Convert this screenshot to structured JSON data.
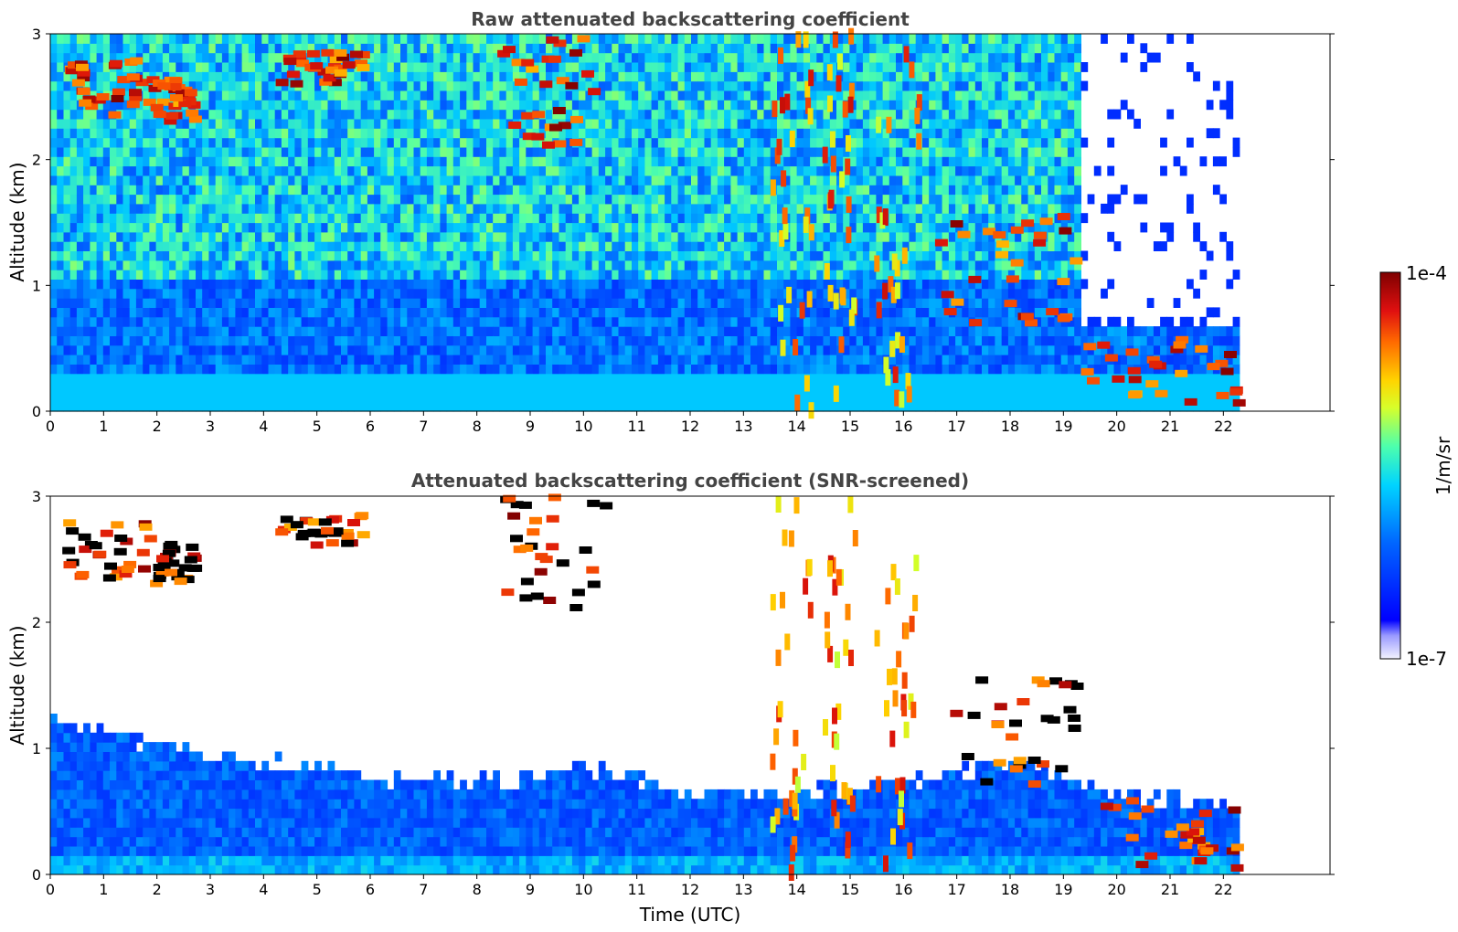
{
  "chart_data": [
    {
      "type": "heatmap",
      "title": "Raw attenuated backscattering coefficient",
      "xlabel": "",
      "ylabel": "Altitude (km)",
      "xlim": [
        0,
        24
      ],
      "ylim": [
        0,
        3
      ],
      "x_ticks": [
        "0",
        "1",
        "2",
        "3",
        "4",
        "5",
        "6",
        "7",
        "8",
        "9",
        "10",
        "11",
        "12",
        "13",
        "14",
        "15",
        "16",
        "17",
        "18",
        "19",
        "20",
        "21",
        "22"
      ],
      "y_ticks": [
        "0",
        "1",
        "2",
        "3"
      ],
      "data_extent_time": [
        0,
        22.3
      ],
      "features": [
        {
          "kind": "cloud",
          "t0": 0.3,
          "t1": 1.9,
          "alt0": 2.35,
          "alt1": 2.8
        },
        {
          "kind": "cloud",
          "t0": 1.9,
          "t1": 2.9,
          "alt0": 2.3,
          "alt1": 2.65
        },
        {
          "kind": "cloud",
          "t0": 4.3,
          "t1": 5.9,
          "alt0": 2.6,
          "alt1": 2.85
        },
        {
          "kind": "cloud",
          "t0": 8.5,
          "t1": 10.5,
          "alt0": 2.1,
          "alt1": 3.0
        },
        {
          "kind": "virga",
          "t0": 13.5,
          "t1": 14.3,
          "alt0": 0.0,
          "alt1": 3.0
        },
        {
          "kind": "virga",
          "t0": 14.5,
          "t1": 15.1,
          "alt0": 0.0,
          "alt1": 3.0
        },
        {
          "kind": "virga",
          "t0": 15.5,
          "t1": 16.3,
          "alt0": 0.0,
          "alt1": 3.0
        },
        {
          "kind": "cloud",
          "t0": 16.6,
          "t1": 19.3,
          "alt0": 0.7,
          "alt1": 1.55
        },
        {
          "kind": "low_cloud",
          "t0": 19.3,
          "t1": 22.3,
          "alt0": 0.05,
          "alt1": 0.6
        }
      ]
    },
    {
      "type": "heatmap",
      "title": "Attenuated backscattering coefficient (SNR-screened)",
      "xlabel": "Time (UTC)",
      "ylabel": "Altitude (km)",
      "xlim": [
        0,
        24
      ],
      "ylim": [
        0,
        3
      ],
      "x_ticks": [
        "0",
        "1",
        "2",
        "3",
        "4",
        "5",
        "6",
        "7",
        "8",
        "9",
        "10",
        "11",
        "12",
        "13",
        "14",
        "15",
        "16",
        "17",
        "18",
        "19",
        "20",
        "21",
        "22"
      ],
      "y_ticks": [
        "0",
        "1",
        "2",
        "3"
      ],
      "data_extent_time": [
        0,
        22.3
      ],
      "boundary_layer_top_km": [
        {
          "t": 0,
          "alt": 1.2
        },
        {
          "t": 2,
          "alt": 1.0
        },
        {
          "t": 4,
          "alt": 0.85
        },
        {
          "t": 6,
          "alt": 0.75
        },
        {
          "t": 8,
          "alt": 0.7
        },
        {
          "t": 10,
          "alt": 0.8
        },
        {
          "t": 12,
          "alt": 0.6
        },
        {
          "t": 14,
          "alt": 0.6
        },
        {
          "t": 16,
          "alt": 0.7
        },
        {
          "t": 18,
          "alt": 0.9
        },
        {
          "t": 20,
          "alt": 0.6
        },
        {
          "t": 22.3,
          "alt": 0.5
        }
      ]
    }
  ],
  "colorbar": {
    "max_label": "1e-4",
    "min_label": "1e-7",
    "unit_label": "1/m/sr",
    "colormap": [
      "#7f0000",
      "#b30000",
      "#ee1b10",
      "#ff6a00",
      "#ffb300",
      "#ffeb00",
      "#b5ff47",
      "#4dffad",
      "#0ff",
      "#00b2ff",
      "#0055ff",
      "#0000ff",
      "#4a4aff",
      "#9a9aff",
      "#d8d8ff",
      "#f0f0ff"
    ]
  }
}
